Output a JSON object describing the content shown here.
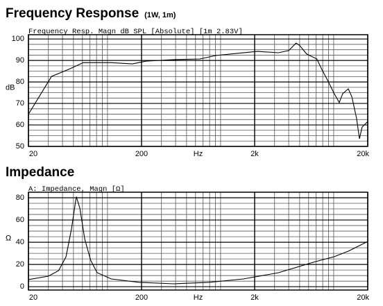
{
  "chart_data": [
    {
      "type": "line",
      "title": "Frequency Response",
      "subtitle": "(1W, 1m)",
      "plot_label": "Frequency Resp. Magn dB SPL  [Absolute] [1m 2.83V]",
      "xlabel": "Hz",
      "ylabel": "dB",
      "xscale": "log",
      "color": "#000000",
      "grid": true,
      "x": [
        20,
        32,
        46,
        61,
        108,
        166,
        220,
        387,
        655,
        908,
        1390,
        2124,
        3250,
        4000,
        4650,
        5000,
        5770,
        7100,
        7840,
        8790,
        10130,
        11200,
        12000,
        13470,
        14500,
        15900,
        16900,
        17840,
        20000
      ],
      "values": [
        65,
        82.6,
        86,
        89,
        89,
        88.4,
        89.7,
        90.4,
        90.7,
        92.3,
        93.3,
        94.2,
        93.6,
        94.6,
        98.1,
        97,
        93,
        90.7,
        85.9,
        81,
        74.5,
        70.4,
        74.5,
        76.8,
        73,
        63.2,
        53.6,
        59,
        61.6
      ],
      "xlim": [
        20,
        20000
      ],
      "ylim": [
        50,
        102
      ],
      "xticks": [
        20,
        200,
        {
          "value": 2000,
          "label": "2k"
        },
        {
          "value": 20000,
          "label": "20k"
        }
      ],
      "yticks": [
        50,
        60,
        70,
        80,
        90,
        100
      ],
      "xminorticks": [
        30,
        40,
        50,
        60,
        70,
        80,
        90,
        100,
        300,
        400,
        500,
        600,
        700,
        800,
        900,
        1000,
        3000,
        4000,
        5000,
        6000,
        7000,
        8000,
        9000,
        10000
      ],
      "yminorticks": [
        52.5,
        55,
        57.5,
        62.5,
        65,
        67.5,
        72.5,
        75,
        77.5,
        82.5,
        85,
        87.5,
        92.5,
        95,
        97.5
      ]
    },
    {
      "type": "line",
      "title": "Impedance",
      "plot_label": "A: Impedance, Magn [Ω]",
      "xlabel": "Hz",
      "ylabel": "Ω",
      "xscale": "log",
      "color": "#000000",
      "grid": true,
      "x": [
        20,
        30,
        37,
        43,
        48,
        53,
        57,
        63,
        71,
        81,
        108,
        191,
        387,
        789,
        1590,
        3250,
        6620,
        10130,
        13500,
        20000
      ],
      "values": [
        6.4,
        9.5,
        14.5,
        27,
        52,
        81,
        70.6,
        42.6,
        23.8,
        12.6,
        7,
        3.9,
        2.6,
        3.9,
        7,
        12.6,
        22,
        27,
        32,
        40.7
      ],
      "xlim": [
        20,
        20000
      ],
      "ylim": [
        -3,
        85
      ],
      "xticks": [
        20,
        200,
        {
          "value": 2000,
          "label": "2k"
        },
        {
          "value": 20000,
          "label": "20k"
        }
      ],
      "yticks": [
        0,
        20,
        40,
        60,
        80
      ],
      "xminorticks": [
        30,
        40,
        50,
        60,
        70,
        80,
        90,
        100,
        300,
        400,
        500,
        600,
        700,
        800,
        900,
        1000,
        3000,
        4000,
        5000,
        6000,
        7000,
        8000,
        9000,
        10000
      ],
      "yminorticks": [
        5,
        10,
        15,
        25,
        30,
        35,
        45,
        50,
        55,
        65,
        70,
        75
      ]
    }
  ]
}
